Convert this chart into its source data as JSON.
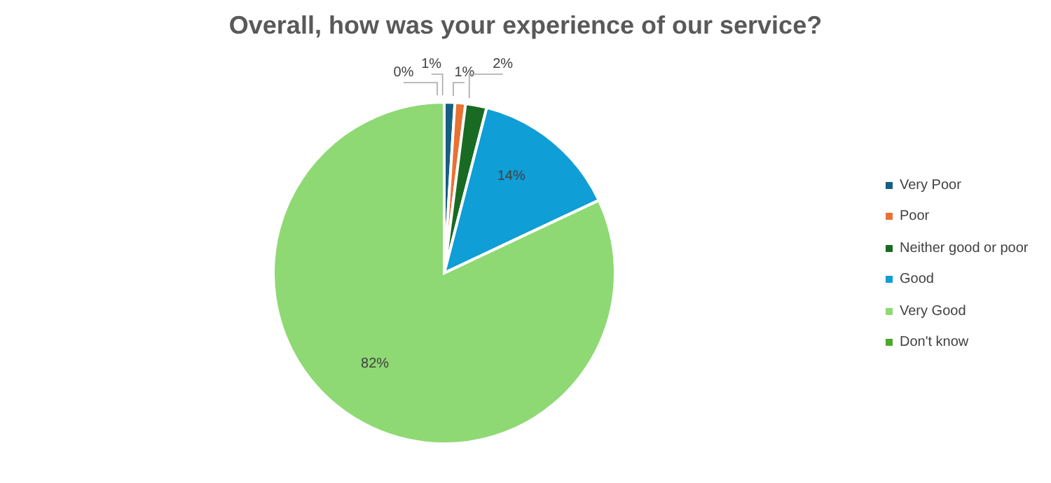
{
  "chart_data": {
    "type": "pie",
    "title": "Overall, how was your experience of our service?",
    "categories": [
      "Very Poor",
      "Poor",
      "Neither good or poor",
      "Good",
      "Very Good",
      "Don't know"
    ],
    "values": [
      1,
      1,
      2,
      14,
      82,
      0
    ],
    "colors": [
      "#156082",
      "#e97132",
      "#196b24",
      "#0f9ed5",
      "#8ed973",
      "#4ea72e"
    ],
    "value_labels": [
      "1%",
      "1%",
      "2%",
      "14%",
      "82%",
      "0%"
    ],
    "legend": "right"
  }
}
